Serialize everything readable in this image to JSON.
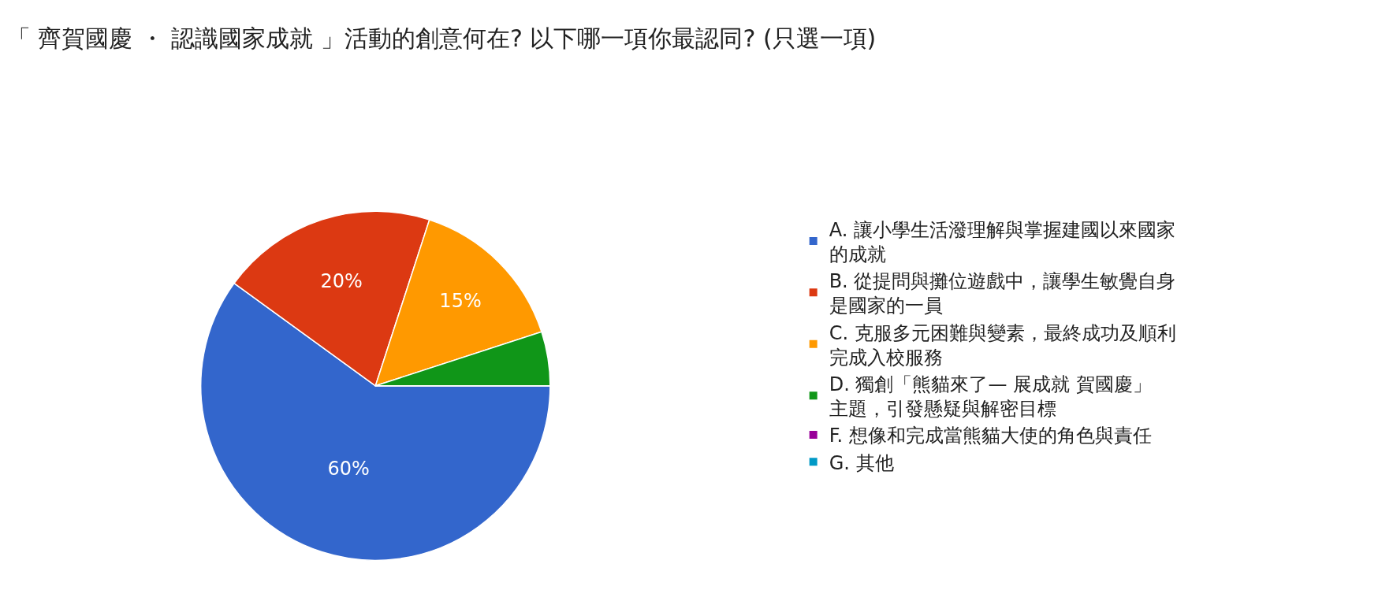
{
  "chart_data": {
    "type": "pie",
    "title": "「 齊賀國慶 ・ 認識國家成就 」活動的創意何在? 以下哪一項你最認同? (只選一項)",
    "categories": [
      "A. 讓小學生活潑理解與掌握建國以來國家的成就",
      "B. 從提問與攤位遊戲中，讓學生敏覺自身是國家的一員",
      "C. 克服多元困難與變素，最終成功及順利完成入校服務",
      "D. 獨創「熊貓來了— 展成就 賀國慶」主題，引發懸疑與解密目標",
      "F. 想像和完成當熊貓大使的角色與責任",
      "G. 其他"
    ],
    "values": [
      60,
      20,
      15,
      5,
      0,
      0
    ],
    "value_labels": [
      "60%",
      "20%",
      "15%",
      null,
      null,
      null
    ],
    "colors": [
      "#3366cc",
      "#dc3912",
      "#ff9900",
      "#109618",
      "#990099",
      "#0099c6"
    ],
    "legend": "right"
  }
}
